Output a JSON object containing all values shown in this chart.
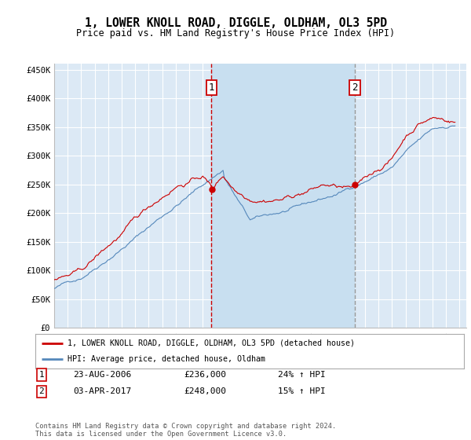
{
  "title": "1, LOWER KNOLL ROAD, DIGGLE, OLDHAM, OL3 5PD",
  "subtitle": "Price paid vs. HM Land Registry's House Price Index (HPI)",
  "ylim": [
    0,
    460000
  ],
  "yticks": [
    0,
    50000,
    100000,
    150000,
    200000,
    250000,
    300000,
    350000,
    400000,
    450000
  ],
  "ytick_labels": [
    "£0",
    "£50K",
    "£100K",
    "£150K",
    "£200K",
    "£250K",
    "£300K",
    "£350K",
    "£400K",
    "£450K"
  ],
  "xlim_start": 1995.0,
  "xlim_end": 2025.5,
  "xticks": [
    1995,
    1996,
    1997,
    1998,
    1999,
    2000,
    2001,
    2002,
    2003,
    2004,
    2005,
    2006,
    2007,
    2008,
    2009,
    2010,
    2011,
    2012,
    2013,
    2014,
    2015,
    2016,
    2017,
    2018,
    2019,
    2020,
    2021,
    2022,
    2023,
    2024,
    2025
  ],
  "plot_bg": "#dce9f5",
  "shade_bg": "#c8dff0",
  "grid_color": "#ffffff",
  "red_line_color": "#cc0000",
  "blue_line_color": "#5588bb",
  "vline1_color": "#cc0000",
  "vline2_color": "#999999",
  "marker1_x": 2006.646,
  "marker1_y": 236000,
  "marker2_x": 2017.25,
  "marker2_y": 248000,
  "legend_line1": "1, LOWER KNOLL ROAD, DIGGLE, OLDHAM, OL3 5PD (detached house)",
  "legend_line2": "HPI: Average price, detached house, Oldham",
  "marker1_date": "23-AUG-2006",
  "marker1_price": "£236,000",
  "marker1_hpi": "24% ↑ HPI",
  "marker2_date": "03-APR-2017",
  "marker2_price": "£248,000",
  "marker2_hpi": "15% ↑ HPI",
  "footer": "Contains HM Land Registry data © Crown copyright and database right 2024.\nThis data is licensed under the Open Government Licence v3.0."
}
